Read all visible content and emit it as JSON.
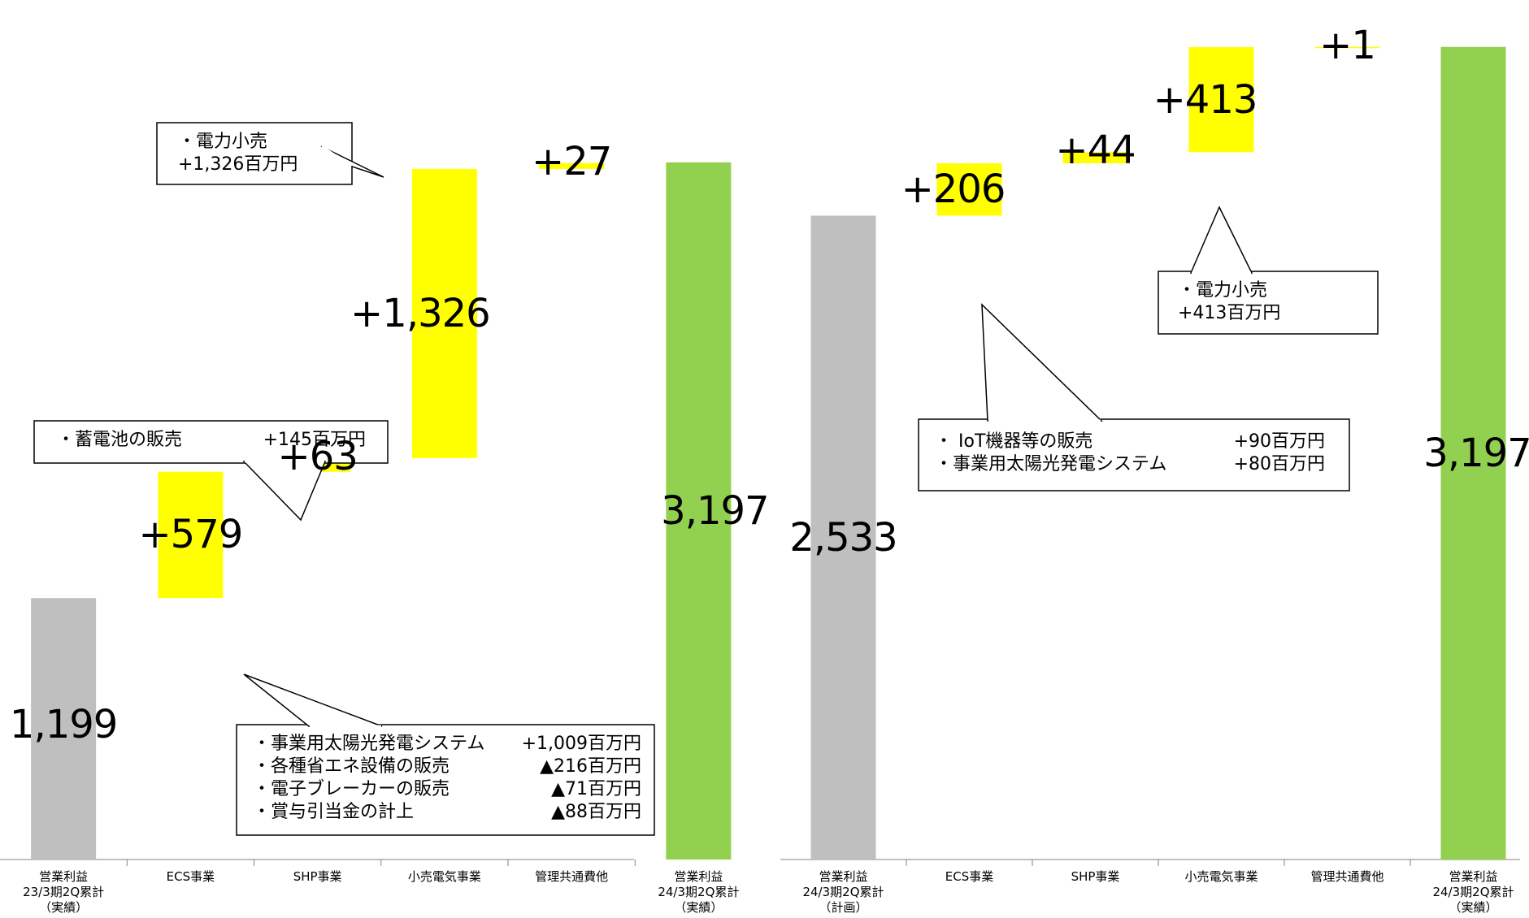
{
  "chart_data": [
    {
      "type": "bar",
      "subtype": "waterfall",
      "categories": [
        "営業利益\n23/3期2Q累計\n（実績）",
        "ECS事業",
        "SHP事業",
        "小売電気事業",
        "管理共通費他",
        "営業利益\n24/3期2Q累計\n（実績）"
      ],
      "values": [
        1199,
        579,
        63,
        1326,
        27,
        3197
      ],
      "value_labels": [
        "1,199",
        "+579",
        "+63",
        "+1,326",
        "+27",
        "3,197"
      ],
      "bar_kinds": [
        "total",
        "delta",
        "delta",
        "delta",
        "delta",
        "total"
      ],
      "ylim": [
        0,
        3800
      ],
      "colors": {
        "start": "#bfbfbf",
        "delta": "#ffff00",
        "end": "#92d050"
      },
      "callouts": [
        {
          "lines": [
            {
              "label": "・電力小売",
              "value": ""
            },
            {
              "label": "+1,326百万円",
              "value": ""
            }
          ]
        },
        {
          "lines": [
            {
              "label": "・蓄電池の販売",
              "value": "+145百万円"
            }
          ]
        },
        {
          "lines": [
            {
              "label": "・事業用太陽光発電システム",
              "value": "+1,009百万円"
            },
            {
              "label": "・各種省エネ設備の販売",
              "value": "▲216百万円"
            },
            {
              "label": "・電子ブレーカーの販売",
              "value": "▲71百万円"
            },
            {
              "label": "・賞与引当金の計上",
              "value": "▲88百万円"
            }
          ]
        }
      ]
    },
    {
      "type": "bar",
      "subtype": "waterfall",
      "categories": [
        "営業利益\n24/3期2Q累計\n（計画）",
        "ECS事業",
        "SHP事業",
        "小売電気事業",
        "管理共通費他",
        "営業利益\n24/3期2Q累計\n（実績）"
      ],
      "values": [
        2533,
        206,
        44,
        413,
        1,
        3197
      ],
      "value_labels": [
        "2,533",
        "+206",
        "+44",
        "+413",
        "+1",
        "3,197"
      ],
      "bar_kinds": [
        "total",
        "delta",
        "delta",
        "delta",
        "delta",
        "total"
      ],
      "ylim": [
        0,
        3260
      ],
      "colors": {
        "start": "#bfbfbf",
        "delta": "#ffff00",
        "end": "#92d050"
      },
      "callouts": [
        {
          "lines": [
            {
              "label": "・ IoT機器等の販売",
              "value": "+90百万円"
            },
            {
              "label": "・事業用太陽光発電システム",
              "value": "+80百万円"
            }
          ]
        },
        {
          "lines": [
            {
              "label": "・電力小売",
              "value": ""
            },
            {
              "label": "+413百万円",
              "value": ""
            }
          ]
        }
      ]
    }
  ]
}
